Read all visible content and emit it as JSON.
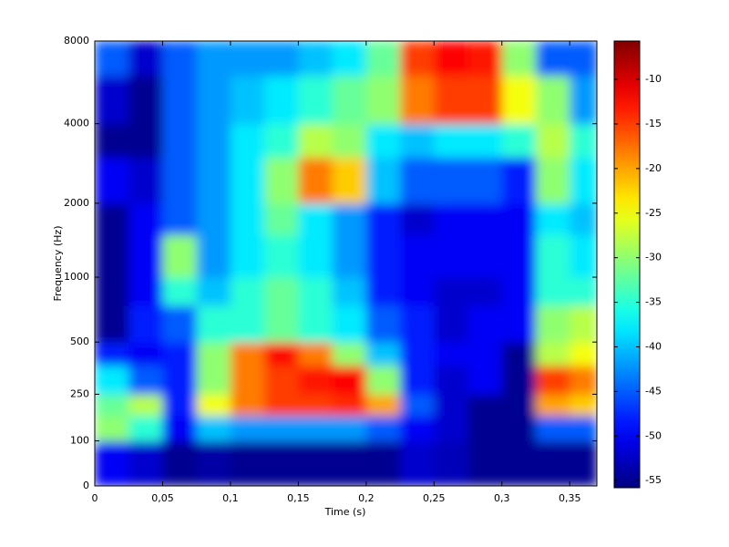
{
  "chart_data": {
    "type": "heatmap",
    "xlabel": "Time (s)",
    "ylabel": "Frequency (Hz)",
    "xlim": [
      0,
      0.37
    ],
    "ylim": [
      0,
      8000
    ],
    "yscale": "erb",
    "xticks": [
      0,
      {
        "value": 0.05,
        "label": "0,05"
      },
      {
        "value": 0.1,
        "label": "0,1"
      },
      {
        "value": 0.15,
        "label": "0,15"
      },
      {
        "value": 0.2,
        "label": "0,2"
      },
      {
        "value": 0.25,
        "label": "0,25"
      },
      {
        "value": 0.3,
        "label": "0,3"
      },
      {
        "value": 0.35,
        "label": "0,35"
      }
    ],
    "yticks": [
      0,
      100,
      250,
      500,
      1000,
      2000,
      4000,
      8000
    ],
    "colormap": "jet",
    "clim": [
      -55.8,
      -5.7
    ],
    "cticks": [
      -10,
      -15,
      -20,
      -25,
      -30,
      -35,
      -40,
      -45,
      -50,
      -55
    ],
    "time_bins": [
      0,
      0.025,
      0.05,
      0.075,
      0.1,
      0.125,
      0.15,
      0.175,
      0.2,
      0.225,
      0.25,
      0.275,
      0.3,
      0.325,
      0.35,
      0.37
    ],
    "freq_bins": [
      0,
      100,
      175,
      250,
      375,
      500,
      750,
      1000,
      1500,
      2000,
      3000,
      4000,
      6000,
      8000
    ],
    "z": [
      [
        -50,
        -52,
        -55,
        -54,
        -55,
        -55,
        -55,
        -55,
        -55,
        -52,
        -53,
        -55,
        -55,
        -55,
        -55
      ],
      [
        -30,
        -35,
        -50,
        -40,
        -42,
        -42,
        -42,
        -42,
        -45,
        -50,
        -52,
        -55,
        -55,
        -45,
        -45
      ],
      [
        -32,
        -28,
        -48,
        -25,
        -18,
        -15,
        -15,
        -14,
        -20,
        -45,
        -52,
        -55,
        -55,
        -20,
        -22
      ],
      [
        -38,
        -45,
        -48,
        -30,
        -18,
        -15,
        -13,
        -12,
        -30,
        -48,
        -52,
        -50,
        -55,
        -15,
        -18
      ],
      [
        -48,
        -50,
        -48,
        -30,
        -18,
        -12,
        -18,
        -30,
        -40,
        -48,
        -50,
        -50,
        -55,
        -28,
        -25
      ],
      [
        -55,
        -48,
        -45,
        -35,
        -35,
        -32,
        -35,
        -38,
        -45,
        -48,
        -52,
        -50,
        -50,
        -30,
        -28
      ],
      [
        -55,
        -50,
        -35,
        -40,
        -35,
        -32,
        -35,
        -40,
        -48,
        -50,
        -52,
        -52,
        -50,
        -35,
        -35
      ],
      [
        -55,
        -50,
        -30,
        -42,
        -38,
        -35,
        -38,
        -42,
        -48,
        -50,
        -50,
        -50,
        -50,
        -35,
        -38
      ],
      [
        -55,
        -50,
        -45,
        -42,
        -38,
        -32,
        -38,
        -42,
        -48,
        -52,
        -50,
        -50,
        -50,
        -38,
        -40
      ],
      [
        -50,
        -52,
        -45,
        -42,
        -38,
        -30,
        -18,
        -22,
        -40,
        -45,
        -45,
        -45,
        -48,
        -30,
        -38
      ],
      [
        -55,
        -55,
        -45,
        -42,
        -38,
        -35,
        -28,
        -30,
        -38,
        -40,
        -38,
        -38,
        -35,
        -28,
        -35
      ],
      [
        -52,
        -55,
        -45,
        -42,
        -40,
        -38,
        -35,
        -32,
        -30,
        -18,
        -15,
        -15,
        -25,
        -30,
        -42
      ],
      [
        -45,
        -52,
        -45,
        -42,
        -42,
        -42,
        -40,
        -38,
        -32,
        -15,
        -12,
        -13,
        -30,
        -45,
        -45
      ]
    ]
  }
}
